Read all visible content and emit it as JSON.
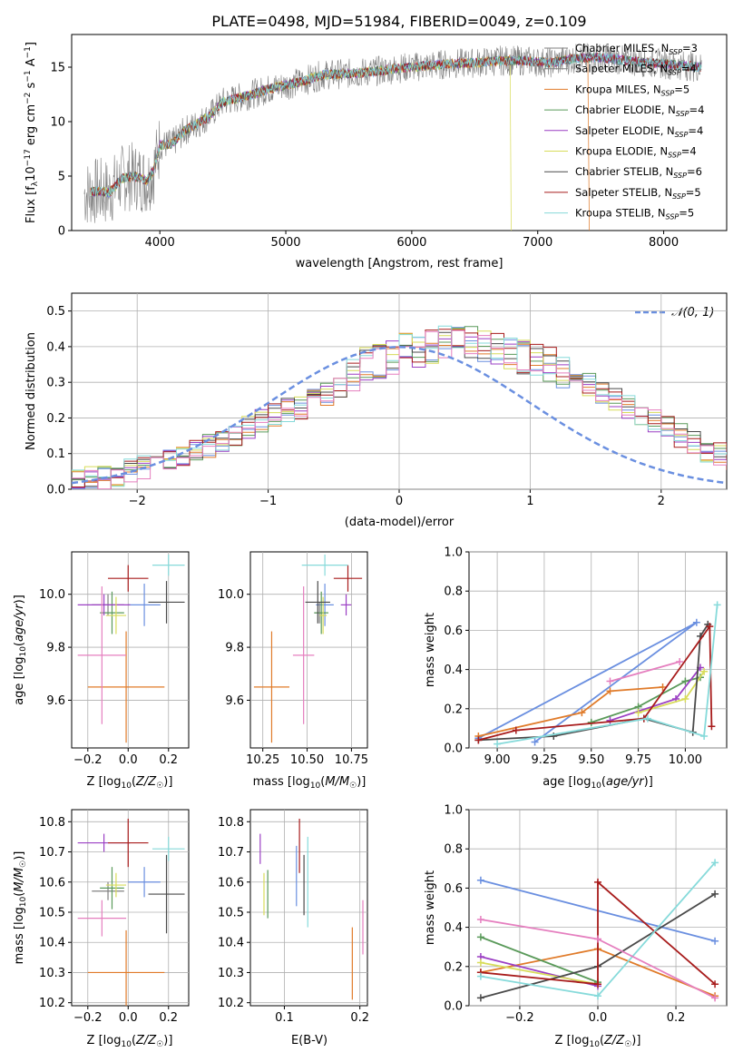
{
  "figure_title": "PLATE=0498, MJD=51984, FIBERID=0049, z=0.109",
  "colors": {
    "Chabrier MILES": "#6a8fe0",
    "Salpeter MILES": "#808080",
    "Kroupa MILES": "#e07b2a",
    "Chabrier ELODIE": "#5a9a5a",
    "Salpeter ELODIE": "#9b3fc4",
    "Kroupa ELODIE": "#d8dc5a",
    "Chabrier STELIB": "#4a4a4a",
    "Salpeter STELIB": "#a81c1c",
    "Kroupa STELIB": "#86dada",
    "pink": "#e57fbf"
  },
  "chart_data": [
    {
      "type": "line",
      "title": "PLATE=0498, MJD=51984, FIBERID=0049, z=0.109",
      "xlabel": "wavelength [Angstrom, rest frame]",
      "ylabel": "Flux [f_λ 10^-17 erg cm^-2 s^-1 A^-1]",
      "xlim": [
        3300,
        8500
      ],
      "ylim": [
        0,
        18
      ],
      "xticks": [
        4000,
        5000,
        6000,
        7000,
        8000
      ],
      "yticks": [
        0,
        5,
        10,
        15
      ],
      "legend_position": "right",
      "continuum": {
        "x": [
          3400,
          3500,
          3600,
          3700,
          3800,
          3900,
          3950,
          4000,
          4100,
          4200,
          4300,
          4400,
          4500,
          4700,
          4900,
          5100,
          5300,
          5500,
          5700,
          5900,
          6100,
          6300,
          6500,
          6700,
          6900,
          7100,
          7300,
          7500,
          7700,
          7900,
          8100,
          8300
        ],
        "y": [
          3.4,
          3.6,
          3.5,
          4.8,
          5.0,
          4.6,
          5.5,
          7.8,
          8.0,
          9.2,
          9.8,
          10.6,
          11.8,
          12.4,
          13.1,
          13.6,
          14.3,
          14.4,
          14.6,
          14.9,
          15.1,
          15.3,
          15.4,
          15.6,
          15.6,
          15.4,
          15.8,
          15.9,
          15.6,
          15.4,
          15.2,
          15.0
        ]
      },
      "series": [
        {
          "name": "Chabrier MILES, N_SSP=3",
          "label": "Chabrier MILES",
          "nssp": "3"
        },
        {
          "name": "Salpeter MILES, N_SSP=4",
          "label": "Salpeter MILES",
          "nssp": "4"
        },
        {
          "name": "Kroupa MILES, N_SSP=5",
          "label": "Kroupa MILES",
          "nssp": "5"
        },
        {
          "name": "Chabrier ELODIE, N_SSP=4",
          "label": "Chabrier ELODIE",
          "nssp": "4"
        },
        {
          "name": "Salpeter ELODIE, N_SSP=4",
          "label": "Salpeter ELODIE",
          "nssp": "4"
        },
        {
          "name": "Kroupa ELODIE, N_SSP=4",
          "label": "Kroupa ELODIE",
          "nssp": "4"
        },
        {
          "name": "Chabrier STELIB, N_SSP=6",
          "label": "Chabrier STELIB",
          "nssp": "6"
        },
        {
          "name": "Salpeter STELIB, N_SSP=5",
          "label": "Salpeter STELIB",
          "nssp": "5"
        },
        {
          "name": "Kroupa STELIB, N_SSP=5",
          "label": "Kroupa STELIB",
          "nssp": "5"
        }
      ]
    },
    {
      "type": "bar",
      "xlabel": "(data-model)/error",
      "ylabel": "Normed distribution",
      "xlim": [
        -2.5,
        2.5
      ],
      "ylim": [
        0,
        0.55
      ],
      "xticks": [
        -2,
        -1,
        0,
        1,
        2
      ],
      "yticks": [
        0.0,
        0.1,
        0.2,
        0.3,
        0.4,
        0.5
      ],
      "grid": true,
      "legend_entries": [
        "N(0,1)"
      ],
      "legend_position": "top-right",
      "bin_width": 0.1,
      "bin_start": -2.5,
      "histogram": [
        0.02,
        0.03,
        0.03,
        0.04,
        0.05,
        0.06,
        0.07,
        0.08,
        0.1,
        0.11,
        0.12,
        0.14,
        0.15,
        0.17,
        0.19,
        0.21,
        0.22,
        0.23,
        0.25,
        0.27,
        0.29,
        0.32,
        0.35,
        0.36,
        0.37,
        0.4,
        0.38,
        0.4,
        0.41,
        0.42,
        0.41,
        0.4,
        0.4,
        0.38,
        0.37,
        0.36,
        0.35,
        0.33,
        0.31,
        0.29,
        0.27,
        0.25,
        0.23,
        0.21,
        0.19,
        0.17,
        0.15,
        0.13,
        0.11,
        0.1,
        0.09
      ]
    },
    {
      "type": "scatter",
      "xlabel": "Z [log10(Z/Z_sun)]",
      "ylabel": "age [log10(age/yr)]",
      "xlim": [
        -0.28,
        0.3
      ],
      "ylim": [
        9.42,
        10.16
      ],
      "xticks": [
        -0.2,
        0.0,
        0.2
      ],
      "yticks": [
        9.6,
        9.8,
        10.0
      ],
      "points": [
        {
          "series": "Chabrier MILES",
          "x": 0.08,
          "y": 9.96,
          "xerr": 0.08,
          "yerr": 0.08
        },
        {
          "series": "Salpeter MILES",
          "x": -0.1,
          "y": 9.96,
          "xerr": 0.08,
          "yerr": 0.04
        },
        {
          "series": "Kroupa MILES",
          "x": -0.01,
          "y": 9.65,
          "xerr": 0.19,
          "yerr": 0.21
        },
        {
          "series": "Chabrier ELODIE",
          "x": -0.08,
          "y": 9.93,
          "xerr": 0.06,
          "yerr": 0.08
        },
        {
          "series": "Salpeter ELODIE",
          "x": -0.12,
          "y": 9.96,
          "xerr": 0.13,
          "yerr": 0.04
        },
        {
          "series": "Kroupa ELODIE",
          "x": -0.06,
          "y": 9.92,
          "xerr": 0.05,
          "yerr": 0.07
        },
        {
          "series": "Chabrier STELIB",
          "x": 0.19,
          "y": 9.97,
          "xerr": 0.09,
          "yerr": 0.08
        },
        {
          "series": "Salpeter STELIB",
          "x": 0.0,
          "y": 10.06,
          "xerr": 0.1,
          "yerr": 0.05
        },
        {
          "series": "Kroupa STELIB",
          "x": 0.2,
          "y": 10.11,
          "xerr": 0.08,
          "yerr": 0.04
        },
        {
          "series": "pink",
          "x": -0.13,
          "y": 9.77,
          "xerr": 0.12,
          "yerr": 0.26
        }
      ]
    },
    {
      "type": "scatter",
      "xlabel": "mass [log10(M/M_sun)]",
      "xlim": [
        10.18,
        10.84
      ],
      "ylim": [
        9.42,
        10.16
      ],
      "xticks": [
        10.25,
        10.5,
        10.75
      ],
      "yticks": [
        9.6,
        9.8,
        10.0
      ],
      "points": [
        {
          "series": "Chabrier MILES",
          "x": 10.6,
          "y": 9.96,
          "xerr": 0.05,
          "yerr": 0.08
        },
        {
          "series": "Salpeter MILES",
          "x": 10.57,
          "y": 9.93,
          "xerr": 0.03,
          "yerr": 0.04
        },
        {
          "series": "Kroupa MILES",
          "x": 10.3,
          "y": 9.65,
          "xerr": 0.1,
          "yerr": 0.21
        },
        {
          "series": "Chabrier ELODIE",
          "x": 10.58,
          "y": 9.93,
          "xerr": 0.04,
          "yerr": 0.08
        },
        {
          "series": "Salpeter ELODIE",
          "x": 10.72,
          "y": 9.96,
          "xerr": 0.03,
          "yerr": 0.04
        },
        {
          "series": "Kroupa ELODIE",
          "x": 10.59,
          "y": 9.92,
          "xerr": 0.02,
          "yerr": 0.07
        },
        {
          "series": "Chabrier STELIB",
          "x": 10.56,
          "y": 9.97,
          "xerr": 0.07,
          "yerr": 0.08
        },
        {
          "series": "Salpeter STELIB",
          "x": 10.73,
          "y": 10.06,
          "xerr": 0.08,
          "yerr": 0.05
        },
        {
          "series": "Kroupa STELIB",
          "x": 10.6,
          "y": 10.11,
          "xerr": 0.13,
          "yerr": 0.04
        },
        {
          "series": "pink",
          "x": 10.48,
          "y": 9.77,
          "xerr": 0.06,
          "yerr": 0.26
        }
      ]
    },
    {
      "type": "line",
      "xlabel": "age [log10(age/yr)]",
      "ylabel": "mass weight",
      "xlim": [
        8.85,
        10.22
      ],
      "ylim": [
        0.0,
        1.0
      ],
      "xticks": [
        9.0,
        9.25,
        9.5,
        9.75,
        10.0
      ],
      "yticks": [
        0.0,
        0.2,
        0.4,
        0.6,
        0.8,
        1.0
      ],
      "grid": true,
      "series": [
        {
          "name": "Chabrier MILES",
          "x": [
            9.2,
            10.06,
            8.9
          ],
          "y": [
            0.03,
            0.64,
            0.05
          ]
        },
        {
          "name": "Kroupa MILES",
          "x": [
            8.9,
            9.45,
            9.6,
            9.88
          ],
          "y": [
            0.06,
            0.18,
            0.29,
            0.31
          ]
        },
        {
          "name": "Chabrier ELODIE",
          "x": [
            9.5,
            9.75,
            10.0,
            10.08
          ],
          "y": [
            0.13,
            0.21,
            0.34,
            0.36
          ]
        },
        {
          "name": "Salpeter ELODIE",
          "x": [
            9.6,
            9.95,
            10.08
          ],
          "y": [
            0.14,
            0.25,
            0.41
          ]
        },
        {
          "name": "Kroupa ELODIE",
          "x": [
            9.75,
            10.0,
            10.1
          ],
          "y": [
            0.18,
            0.25,
            0.39
          ]
        },
        {
          "name": "Chabrier STELIB",
          "x": [
            8.9,
            9.3,
            9.78,
            10.04,
            10.08,
            10.12
          ],
          "y": [
            0.04,
            0.06,
            0.15,
            0.08,
            0.57,
            0.63
          ]
        },
        {
          "name": "Salpeter STELIB",
          "x": [
            8.9,
            9.1,
            9.78,
            10.13,
            10.14
          ],
          "y": [
            0.04,
            0.09,
            0.15,
            0.62,
            0.11
          ]
        },
        {
          "name": "Kroupa STELIB",
          "x": [
            9.0,
            9.8,
            10.1,
            10.17
          ],
          "y": [
            0.02,
            0.15,
            0.06,
            0.73
          ]
        },
        {
          "name": "pink",
          "x": [
            9.6,
            9.97
          ],
          "y": [
            0.34,
            0.44
          ]
        }
      ]
    },
    {
      "type": "scatter",
      "xlabel": "Z [log10(Z/Z_sun)]",
      "ylabel": "mass [log10(M/M_sun)]",
      "xlim": [
        -0.28,
        0.3
      ],
      "ylim": [
        10.19,
        10.84
      ],
      "xticks": [
        -0.2,
        0.0,
        0.2
      ],
      "yticks": [
        10.2,
        10.3,
        10.4,
        10.5,
        10.6,
        10.7,
        10.8
      ],
      "points": [
        {
          "series": "Chabrier MILES",
          "x": 0.08,
          "y": 10.6,
          "xerr": 0.08,
          "yerr": 0.05
        },
        {
          "series": "Salpeter MILES",
          "x": -0.1,
          "y": 10.57,
          "xerr": 0.08,
          "yerr": 0.03
        },
        {
          "series": "Kroupa MILES",
          "x": -0.01,
          "y": 10.3,
          "xerr": 0.19,
          "yerr": 0.14
        },
        {
          "series": "Chabrier ELODIE",
          "x": -0.08,
          "y": 10.58,
          "xerr": 0.06,
          "yerr": 0.07
        },
        {
          "series": "Salpeter ELODIE",
          "x": -0.12,
          "y": 10.73,
          "xerr": 0.13,
          "yerr": 0.03
        },
        {
          "series": "Kroupa ELODIE",
          "x": -0.06,
          "y": 10.59,
          "xerr": 0.05,
          "yerr": 0.04
        },
        {
          "series": "Chabrier STELIB",
          "x": 0.19,
          "y": 10.56,
          "xerr": 0.09,
          "yerr": 0.13
        },
        {
          "series": "Salpeter STELIB",
          "x": 0.0,
          "y": 10.73,
          "xerr": 0.1,
          "yerr": 0.08
        },
        {
          "series": "Kroupa STELIB",
          "x": 0.2,
          "y": 10.71,
          "xerr": 0.08,
          "yerr": 0.04
        },
        {
          "series": "pink",
          "x": -0.13,
          "y": 10.48,
          "xerr": 0.12,
          "yerr": 0.06
        }
      ]
    },
    {
      "type": "scatter",
      "xlabel": "E(B-V)",
      "xlim": [
        0.055,
        0.21
      ],
      "ylim": [
        10.19,
        10.84
      ],
      "xticks": [
        0.1,
        0.2
      ],
      "yticks": [
        10.2,
        10.3,
        10.4,
        10.5,
        10.6,
        10.7,
        10.8
      ],
      "points": [
        {
          "series": "Salpeter ELODIE",
          "x": 0.068,
          "y": 10.71,
          "yerr": 0.05
        },
        {
          "series": "Kroupa ELODIE",
          "x": 0.073,
          "y": 10.56,
          "yerr": 0.07
        },
        {
          "series": "Chabrier ELODIE",
          "x": 0.078,
          "y": 10.56,
          "yerr": 0.08
        },
        {
          "series": "Chabrier MILES",
          "x": 0.116,
          "y": 10.62,
          "yerr": 0.1
        },
        {
          "series": "Salpeter STELIB",
          "x": 0.12,
          "y": 10.72,
          "yerr": 0.09
        },
        {
          "series": "Chabrier STELIB",
          "x": 0.126,
          "y": 10.59,
          "yerr": 0.1
        },
        {
          "series": "Kroupa STELIB",
          "x": 0.131,
          "y": 10.6,
          "yerr": 0.15
        },
        {
          "series": "Kroupa MILES",
          "x": 0.19,
          "y": 10.33,
          "yerr": 0.12
        },
        {
          "series": "pink",
          "x": 0.204,
          "y": 10.45,
          "yerr": 0.09
        }
      ]
    },
    {
      "type": "line",
      "xlabel": "Z [log10(Z/Z_sun)]",
      "ylabel": "mass weight",
      "xlim": [
        -0.33,
        0.33
      ],
      "ylim": [
        0.0,
        1.0
      ],
      "xticks": [
        -0.2,
        0.0,
        0.2
      ],
      "yticks": [
        0.0,
        0.2,
        0.4,
        0.6,
        0.8,
        1.0
      ],
      "grid": true,
      "series": [
        {
          "name": "Chabrier MILES",
          "x": [
            -0.3,
            0.3
          ],
          "y": [
            0.64,
            0.33
          ]
        },
        {
          "name": "Kroupa MILES",
          "x": [
            -0.3,
            0.0,
            0.3
          ],
          "y": [
            0.17,
            0.29,
            0.05
          ]
        },
        {
          "name": "Chabrier ELODIE",
          "x": [
            -0.3,
            0.0
          ],
          "y": [
            0.35,
            0.12
          ]
        },
        {
          "name": "Salpeter ELODIE",
          "x": [
            -0.3,
            0.0
          ],
          "y": [
            0.25,
            0.1
          ]
        },
        {
          "name": "Kroupa ELODIE",
          "x": [
            -0.3,
            0.0
          ],
          "y": [
            0.22,
            0.11
          ]
        },
        {
          "name": "Chabrier STELIB",
          "x": [
            -0.3,
            0.0,
            0.3
          ],
          "y": [
            0.04,
            0.2,
            0.57
          ]
        },
        {
          "name": "Salpeter STELIB",
          "x": [
            -0.3,
            0.0,
            0.0,
            0.3
          ],
          "y": [
            0.17,
            0.11,
            0.63,
            0.11
          ]
        },
        {
          "name": "Kroupa STELIB",
          "x": [
            -0.3,
            0.0,
            0.3
          ],
          "y": [
            0.15,
            0.05,
            0.73
          ]
        },
        {
          "name": "pink",
          "x": [
            -0.3,
            0.0,
            0.3
          ],
          "y": [
            0.44,
            0.34,
            0.04
          ]
        }
      ]
    }
  ]
}
